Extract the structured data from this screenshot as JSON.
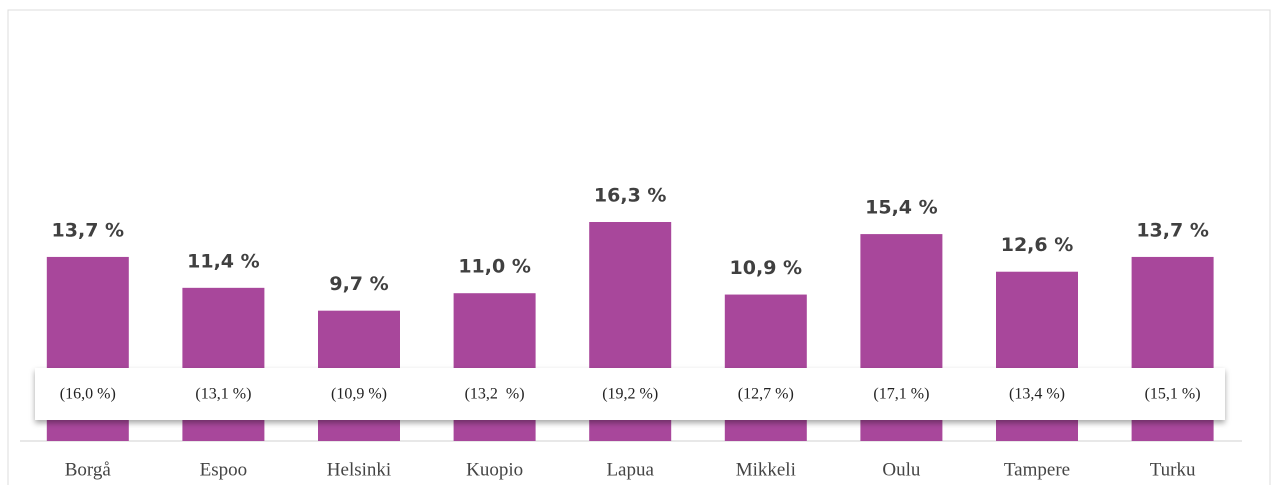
{
  "chart_data": {
    "type": "bar",
    "categories": [
      "Borgå",
      "Espoo",
      "Helsinki",
      "Kuopio",
      "Lapua",
      "Mikkeli",
      "Oulu",
      "Tampere",
      "Turku"
    ],
    "values": [
      13.7,
      11.4,
      9.7,
      11.0,
      16.3,
      10.9,
      15.4,
      12.6,
      13.7
    ],
    "value_labels": [
      "13,7 %",
      "11,4 %",
      "9,7 %",
      "11,0 %",
      "16,3 %",
      "10,9 %",
      "15,4 %",
      "12,6 %",
      "13,7 %"
    ],
    "color": "#a8479b",
    "comparison": {
      "values": [
        16.0,
        13.1,
        10.9,
        13.2,
        19.2,
        12.7,
        17.1,
        13.4,
        15.1
      ],
      "value_labels": [
        "(16,0 %)",
        "(13,1 %)",
        "(10,9 %)",
        "(13,2  %)",
        "(19,2 %)",
        "(12,7 %)",
        "(17,1 %)",
        "(13,4 %)",
        "(15,1 %)"
      ]
    }
  }
}
